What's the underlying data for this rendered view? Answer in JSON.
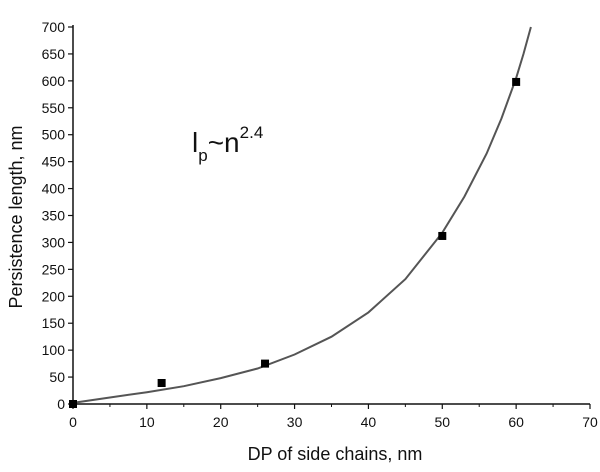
{
  "chart_data": {
    "type": "scatter",
    "xlabel": "DP of side chains, nm",
    "ylabel": "Persistence length, nm",
    "xlim": [
      0,
      70
    ],
    "ylim": [
      0,
      700
    ],
    "xticks": [
      "0",
      "10",
      "20",
      "30",
      "40",
      "50",
      "60",
      "70"
    ],
    "yticks": [
      "0",
      "50",
      "100",
      "150",
      "200",
      "250",
      "300",
      "350",
      "400",
      "450",
      "500",
      "550",
      "600",
      "650",
      "700"
    ],
    "grid": false,
    "legend": "none",
    "annotation": {
      "base": "l",
      "subscript": "p",
      "tilde": "~n",
      "superscript": "2.4"
    },
    "series": [
      {
        "kind": "markers",
        "marker": "square",
        "color": "#000000",
        "points": [
          {
            "x": 0,
            "y": 0
          },
          {
            "x": 12,
            "y": 39
          },
          {
            "x": 26,
            "y": 75
          },
          {
            "x": 50,
            "y": 312
          },
          {
            "x": 60,
            "y": 598
          }
        ]
      },
      {
        "kind": "fit",
        "color": "#555555",
        "curve": [
          {
            "x": 0,
            "y": 2
          },
          {
            "x": 5,
            "y": 12
          },
          {
            "x": 10,
            "y": 22
          },
          {
            "x": 15,
            "y": 33
          },
          {
            "x": 20,
            "y": 48
          },
          {
            "x": 25,
            "y": 66
          },
          {
            "x": 30,
            "y": 92
          },
          {
            "x": 35,
            "y": 125
          },
          {
            "x": 40,
            "y": 170
          },
          {
            "x": 45,
            "y": 232
          },
          {
            "x": 50,
            "y": 318
          },
          {
            "x": 53,
            "y": 385
          },
          {
            "x": 56,
            "y": 465
          },
          {
            "x": 58,
            "y": 530
          },
          {
            "x": 60,
            "y": 605
          },
          {
            "x": 61,
            "y": 650
          },
          {
            "x": 62,
            "y": 700
          }
        ]
      }
    ]
  }
}
